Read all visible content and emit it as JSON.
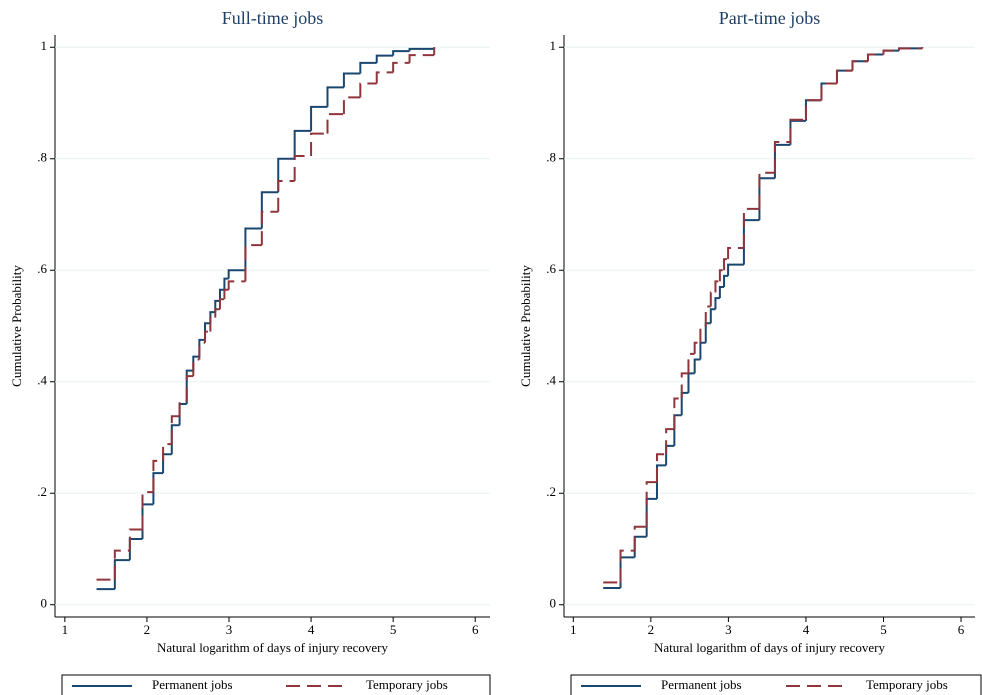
{
  "chart_data": [
    {
      "type": "line",
      "step": true,
      "title": "Full-time jobs",
      "x_label": "Natural logarithm of days of injury recovery",
      "y_label": "Cumulative Probability",
      "x": [
        1.386,
        1.609,
        1.792,
        1.946,
        2.079,
        2.197,
        2.303,
        2.398,
        2.485,
        2.565,
        2.639,
        2.708,
        2.773,
        2.833,
        2.89,
        2.944,
        2.996,
        3.2,
        3.4,
        3.6,
        3.8,
        4.0,
        4.2,
        4.4,
        4.6,
        4.8,
        5.0,
        5.2,
        5.5
      ],
      "series": [
        {
          "name": "Permanent jobs",
          "color": "#1a476f",
          "style": "solid",
          "values": [
            0.028,
            0.08,
            0.118,
            0.18,
            0.236,
            0.27,
            0.322,
            0.36,
            0.42,
            0.445,
            0.475,
            0.505,
            0.525,
            0.545,
            0.565,
            0.585,
            0.6,
            0.675,
            0.74,
            0.8,
            0.85,
            0.893,
            0.928,
            0.953,
            0.972,
            0.985,
            0.993,
            0.997,
            1.0
          ]
        },
        {
          "name": "Temporary jobs",
          "color": "#90353b",
          "style": "dashed",
          "values": [
            0.045,
            0.097,
            0.135,
            0.202,
            0.258,
            0.288,
            0.338,
            0.365,
            0.41,
            0.44,
            0.47,
            0.49,
            0.515,
            0.53,
            0.548,
            0.565,
            0.58,
            0.645,
            0.705,
            0.76,
            0.805,
            0.845,
            0.88,
            0.91,
            0.935,
            0.955,
            0.972,
            0.986,
            1.0
          ]
        }
      ],
      "xlim": [
        0.88,
        6.18
      ],
      "xticks": [
        1,
        2,
        3,
        4,
        5,
        6
      ],
      "ylim": [
        -0.022,
        1.022
      ],
      "yticks": [
        0,
        {
          "value": 0.2,
          "label": ".2"
        },
        {
          "value": 0.4,
          "label": ".4"
        },
        {
          "value": 0.6,
          "label": ".6"
        },
        {
          "value": 0.8,
          "label": ".8"
        },
        1
      ],
      "grid": true,
      "legend": "bottom"
    },
    {
      "type": "line",
      "step": true,
      "title": "Part-time jobs",
      "x_label": "Natural logarithm of days of injury recovery",
      "y_label": "Cumulative Probability",
      "x": [
        1.386,
        1.609,
        1.792,
        1.946,
        2.079,
        2.197,
        2.303,
        2.398,
        2.485,
        2.565,
        2.639,
        2.708,
        2.773,
        2.833,
        2.89,
        2.944,
        2.996,
        3.2,
        3.4,
        3.6,
        3.8,
        4.0,
        4.2,
        4.4,
        4.6,
        4.8,
        5.0,
        5.2,
        5.5
      ],
      "series": [
        {
          "name": "Permanent jobs",
          "color": "#1a476f",
          "style": "solid",
          "values": [
            0.03,
            0.085,
            0.122,
            0.19,
            0.25,
            0.285,
            0.34,
            0.38,
            0.415,
            0.44,
            0.47,
            0.505,
            0.53,
            0.55,
            0.57,
            0.59,
            0.61,
            0.69,
            0.765,
            0.825,
            0.868,
            0.905,
            0.935,
            0.958,
            0.975,
            0.987,
            0.994,
            0.998,
            1.0
          ]
        },
        {
          "name": "Temporary jobs",
          "color": "#90353b",
          "style": "dashed",
          "values": [
            0.04,
            0.097,
            0.14,
            0.22,
            0.27,
            0.315,
            0.37,
            0.415,
            0.45,
            0.47,
            0.5,
            0.535,
            0.56,
            0.58,
            0.6,
            0.62,
            0.64,
            0.71,
            0.775,
            0.83,
            0.87,
            0.905,
            0.935,
            0.958,
            0.975,
            0.987,
            0.994,
            0.998,
            1.0
          ]
        }
      ],
      "xlim": [
        0.88,
        6.18
      ],
      "xticks": [
        1,
        2,
        3,
        4,
        5,
        6
      ],
      "ylim": [
        -0.022,
        1.022
      ],
      "yticks": [
        0,
        {
          "value": 0.2,
          "label": ".2"
        },
        {
          "value": 0.4,
          "label": ".4"
        },
        {
          "value": 0.6,
          "label": ".6"
        },
        {
          "value": 0.8,
          "label": ".8"
        },
        1
      ],
      "grid": true,
      "legend": "bottom"
    }
  ]
}
